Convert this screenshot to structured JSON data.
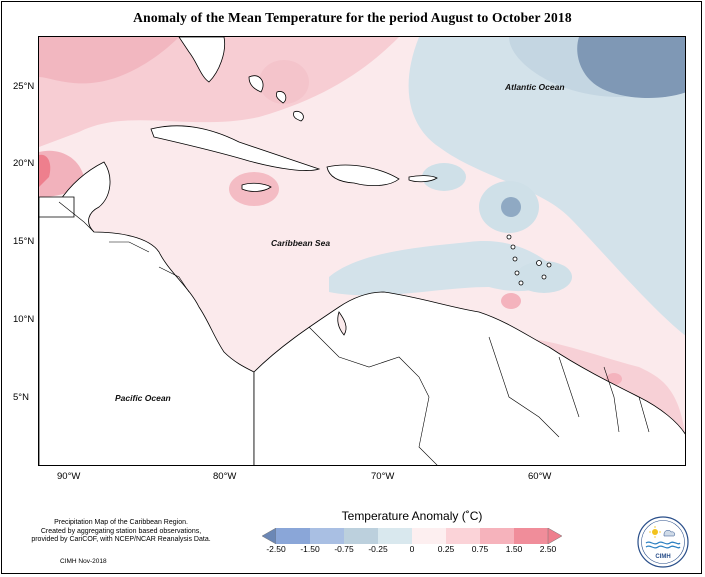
{
  "title": "Anomaly of the Mean Temperature for the period August to October 2018",
  "map": {
    "y_ticks": [
      "25°N",
      "20°N",
      "15°N",
      "10°N",
      "5°N"
    ],
    "x_ticks": [
      "90°W",
      "80°W",
      "70°W",
      "60°W"
    ],
    "labels": {
      "atlantic": "Atlantic Ocean",
      "caribbean": "Caribbean Sea",
      "pacific": "Pacific Ocean"
    }
  },
  "legend": {
    "title": "Temperature Anomaly (˚C)",
    "tick_labels": [
      "-2.50",
      "-1.50",
      "-0.75",
      "-0.25",
      "0",
      "0.25",
      "0.75",
      "1.50",
      "2.50"
    ],
    "colors": [
      "#6b87b5",
      "#8aa6d8",
      "#a9bfe3",
      "#bcd0dd",
      "#d9e8ee",
      "#fdeff0",
      "#fbd3d8",
      "#f6b3bc",
      "#f08d9a",
      "#ee7f8d"
    ]
  },
  "notes": {
    "line1": "Precipitation Map of the Caribbean Region.",
    "line2": "Created by aggregating station based observations,",
    "line3": "provided by CariCOF, with NCEP/NCAR Reanalysis Data.",
    "date": "CIMH Nov-2018"
  },
  "logo": {
    "text": "CIMH",
    "icon": "cimh-logo-icon"
  }
}
